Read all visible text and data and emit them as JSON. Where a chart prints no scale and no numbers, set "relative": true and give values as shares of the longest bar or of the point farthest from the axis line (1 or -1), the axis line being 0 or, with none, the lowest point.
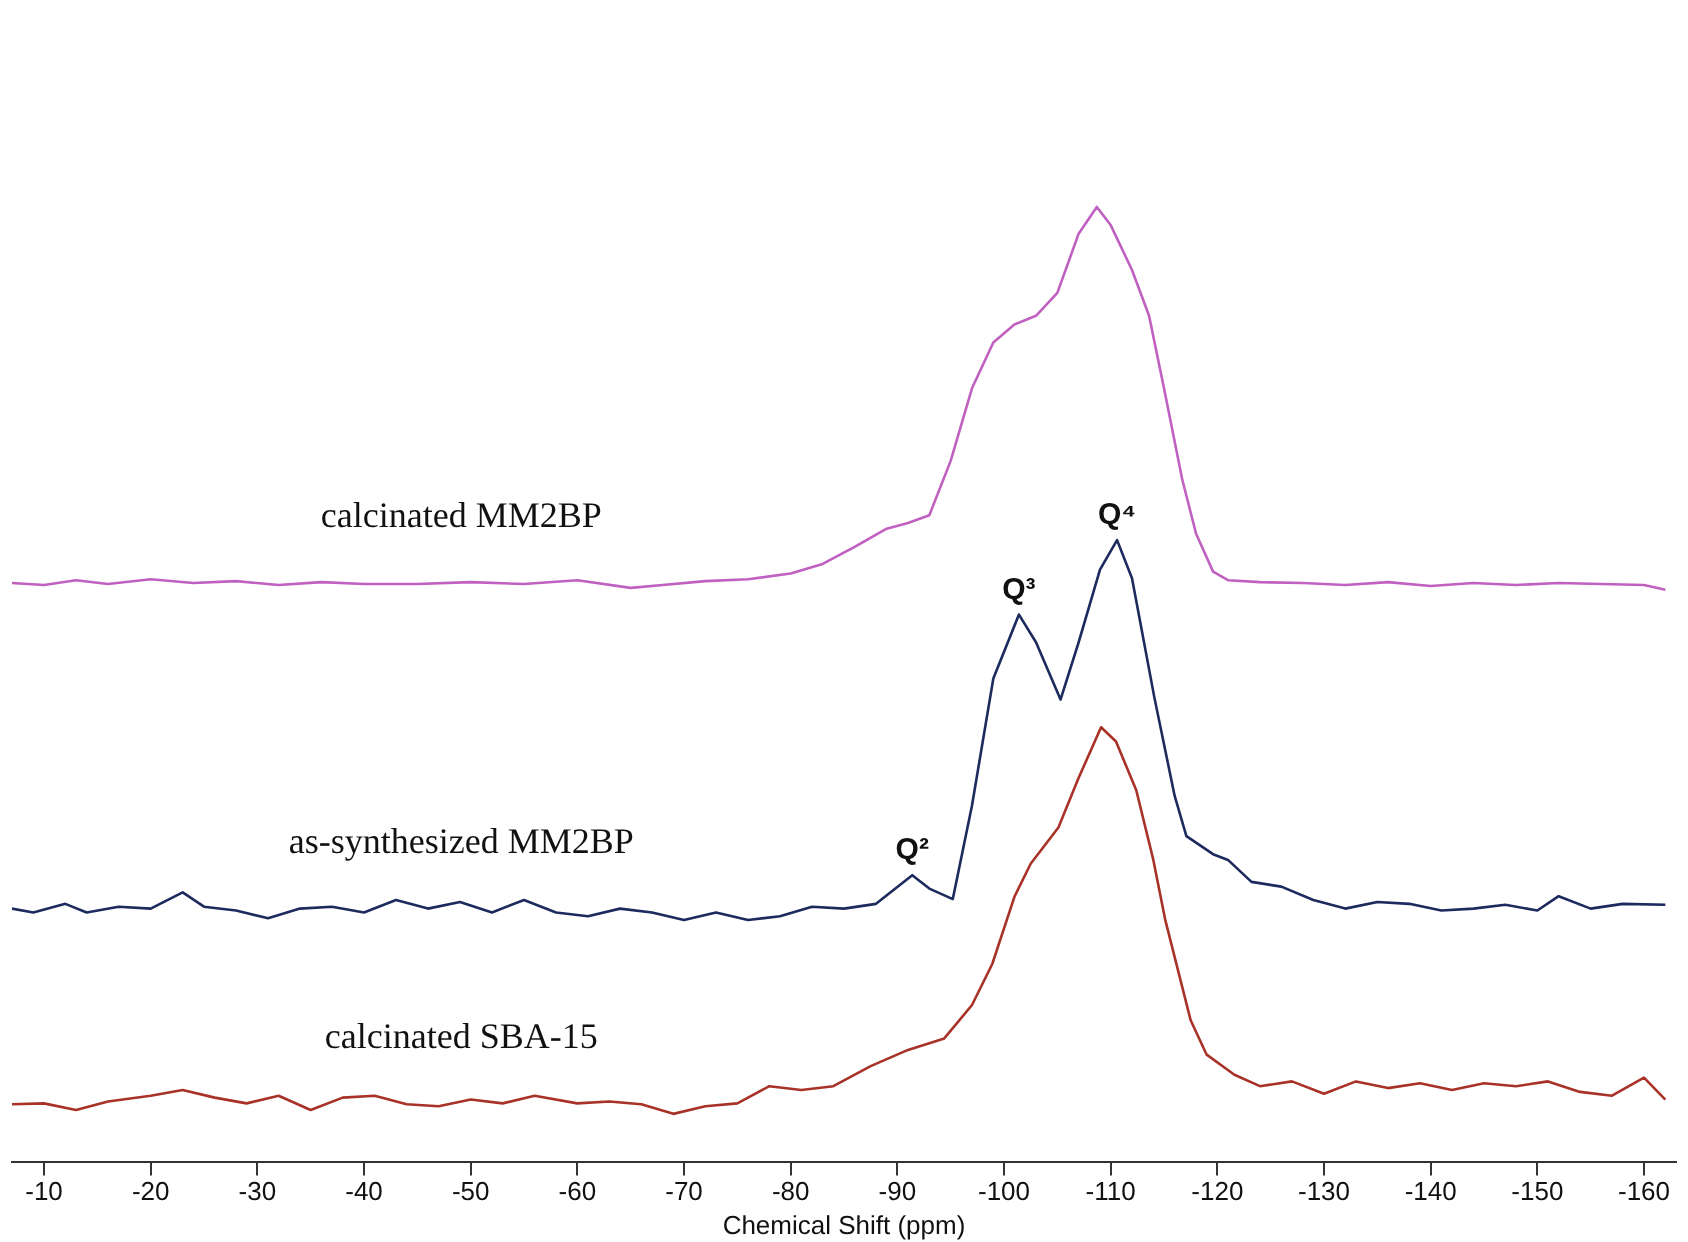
{
  "chart_data": {
    "type": "line",
    "xlabel": "Chemical Shift (ppm)",
    "relative": true,
    "grid": false,
    "legend": false,
    "marker": "none",
    "line_style": "solid",
    "xlim": [
      -7,
      -163
    ],
    "xticks": [
      -10,
      -20,
      -30,
      -40,
      -50,
      -60,
      -70,
      -80,
      -90,
      -100,
      -110,
      -120,
      -130,
      -140,
      -150,
      -160
    ],
    "series": [
      {
        "name": "calcinated MM2BP",
        "color": "#c060c0",
        "x": [
          -7,
          -10,
          -13,
          -16,
          -20,
          -24,
          -28,
          -32,
          -36,
          -40,
          -45,
          -50,
          -55,
          -60,
          -65,
          -68,
          -72,
          -76,
          -80,
          -83,
          -86,
          -89,
          -91,
          -93,
          -95,
          -97,
          -99,
          -101,
          -103,
          -105,
          -107,
          -108.7,
          -110,
          -112,
          -113.6,
          -115,
          -116.7,
          -118,
          -119.6,
          -121,
          -124,
          -128,
          -132,
          -136,
          -140,
          -144,
          -148,
          -152,
          -156,
          -160,
          -162
        ],
        "values": [
          0.606,
          0.604,
          0.609,
          0.605,
          0.61,
          0.606,
          0.608,
          0.604,
          0.607,
          0.605,
          0.605,
          0.607,
          0.605,
          0.609,
          0.601,
          0.604,
          0.608,
          0.61,
          0.616,
          0.626,
          0.644,
          0.663,
          0.669,
          0.677,
          0.734,
          0.81,
          0.858,
          0.877,
          0.886,
          0.91,
          0.972,
          1.0,
          0.981,
          0.934,
          0.886,
          0.81,
          0.715,
          0.658,
          0.618,
          0.609,
          0.607,
          0.606,
          0.604,
          0.607,
          0.603,
          0.606,
          0.604,
          0.606,
          0.605,
          0.604,
          0.599
        ]
      },
      {
        "name": "as-synthesized MM2BP",
        "color": "#1c2a5e",
        "x": [
          -7,
          -9,
          -12,
          -14,
          -17,
          -20,
          -23,
          -25,
          -28,
          -31,
          -34,
          -37,
          -40,
          -43,
          -46,
          -49,
          -52,
          -55,
          -58,
          -61,
          -64,
          -67,
          -70,
          -73,
          -76,
          -79,
          -82,
          -85,
          -88,
          -91.4,
          -93,
          -95.2,
          -97,
          -99,
          -101.4,
          -103,
          -105.3,
          -107,
          -109,
          -110.6,
          -112,
          -114.1,
          -116,
          -117.1,
          -119.6,
          -121,
          -123.2,
          -126,
          -129,
          -132,
          -135,
          -138,
          -141,
          -144,
          -147,
          -150,
          -152,
          -155,
          -158,
          -162
        ],
        "values": [
          0.265,
          0.261,
          0.27,
          0.261,
          0.267,
          0.265,
          0.282,
          0.267,
          0.263,
          0.255,
          0.265,
          0.267,
          0.261,
          0.274,
          0.265,
          0.272,
          0.261,
          0.274,
          0.261,
          0.257,
          0.265,
          0.261,
          0.253,
          0.261,
          0.253,
          0.257,
          0.267,
          0.265,
          0.27,
          0.3,
          0.286,
          0.275,
          0.373,
          0.506,
          0.573,
          0.544,
          0.484,
          0.544,
          0.62,
          0.651,
          0.611,
          0.486,
          0.383,
          0.341,
          0.322,
          0.316,
          0.293,
          0.288,
          0.274,
          0.265,
          0.272,
          0.27,
          0.263,
          0.265,
          0.269,
          0.263,
          0.278,
          0.265,
          0.27,
          0.269
        ]
      },
      {
        "name": "calcinated SBA-15",
        "color": "#a83228",
        "x": [
          -7,
          -10,
          -13,
          -16,
          -20,
          -23,
          -26,
          -29,
          -32,
          -35,
          -38,
          -41,
          -44,
          -47,
          -50,
          -53,
          -56,
          -60,
          -63,
          -66,
          -69,
          -72,
          -75,
          -78,
          -81,
          -84,
          -87.5,
          -91,
          -94.4,
          -97,
          -98.9,
          -101,
          -102.5,
          -105.1,
          -107,
          -109.1,
          -110.5,
          -112.4,
          -114,
          -115.1,
          -117.5,
          -119,
          -121.6,
          -124,
          -127,
          -130,
          -133,
          -136,
          -139,
          -142,
          -145,
          -148,
          -151,
          -154,
          -157,
          -160,
          -162
        ],
        "values": [
          0.06,
          0.061,
          0.054,
          0.063,
          0.069,
          0.075,
          0.067,
          0.061,
          0.069,
          0.054,
          0.067,
          0.069,
          0.06,
          0.058,
          0.065,
          0.061,
          0.069,
          0.061,
          0.063,
          0.06,
          0.05,
          0.058,
          0.061,
          0.079,
          0.075,
          0.079,
          0.1,
          0.117,
          0.129,
          0.164,
          0.207,
          0.278,
          0.312,
          0.35,
          0.402,
          0.455,
          0.44,
          0.389,
          0.316,
          0.254,
          0.148,
          0.112,
          0.091,
          0.079,
          0.084,
          0.071,
          0.084,
          0.077,
          0.082,
          0.075,
          0.082,
          0.079,
          0.084,
          0.073,
          0.069,
          0.088,
          0.065
        ]
      }
    ],
    "annotations": [
      {
        "text": "Q²",
        "x": -91.4,
        "y": 0.3
      },
      {
        "text": "Q³",
        "x": -101.4,
        "y": 0.573
      },
      {
        "text": "Q⁴",
        "x": -110.6,
        "y": 0.651
      }
    ]
  }
}
